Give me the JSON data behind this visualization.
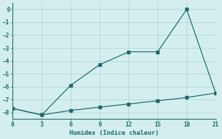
{
  "xlabel": "Humidex (Indice chaleur)",
  "x_line1": [
    0,
    3,
    6,
    9,
    12,
    15,
    18,
    21
  ],
  "y_line1": [
    -7.7,
    -8.2,
    -5.9,
    -4.3,
    -3.3,
    -3.3,
    0.0,
    -6.5
  ],
  "x_line2": [
    0,
    3,
    6,
    9,
    12,
    15,
    18,
    21
  ],
  "y_line2": [
    -7.7,
    -8.2,
    -7.85,
    -7.6,
    -7.35,
    -7.1,
    -6.85,
    -6.5
  ],
  "line_color": "#1a6b6b",
  "bg_color": "#d4eeee",
  "grid_color": "#b0d8d8",
  "xlim": [
    0,
    21
  ],
  "ylim": [
    -8.5,
    0.5
  ],
  "xticks": [
    0,
    3,
    6,
    9,
    12,
    15,
    18,
    21
  ],
  "yticks": [
    0,
    -1,
    -2,
    -3,
    -4,
    -5,
    -6,
    -7,
    -8
  ],
  "marker": "s",
  "markersize": 2.5
}
